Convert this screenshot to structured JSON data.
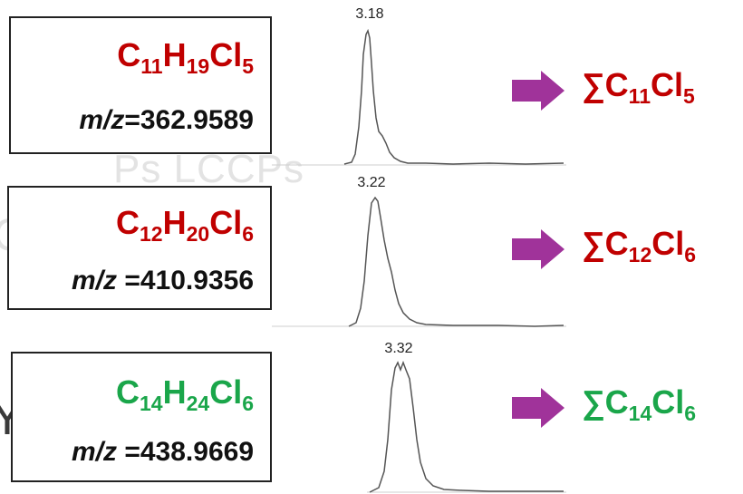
{
  "watermark": {
    "line1": "Ps  LCCPs",
    "line2": "C",
    "line3": "Y"
  },
  "colors": {
    "red": "#c00000",
    "green": "#1aa64a",
    "arrow": "#a0339a",
    "trace": "#555555"
  },
  "rows": [
    {
      "formula": {
        "c": "C",
        "c_n": "11",
        "h": "H",
        "h_n": "19",
        "cl": "Cl",
        "cl_n": "5"
      },
      "mz_label": "m/z",
      "mz_value": "=362.9589",
      "peak_label": "3.18",
      "sum": {
        "sym": "∑C",
        "c_n": "11",
        "cl": "Cl",
        "cl_n": "5"
      },
      "color": "red"
    },
    {
      "formula": {
        "c": "C",
        "c_n": "12",
        "h": "H",
        "h_n": "20",
        "cl": "Cl",
        "cl_n": "6"
      },
      "mz_label": "m/z",
      "mz_value": " =410.9356",
      "peak_label": "3.22",
      "sum": {
        "sym": "∑C",
        "c_n": "12",
        "cl": "Cl",
        "cl_n": "6"
      },
      "color": "red"
    },
    {
      "formula": {
        "c": "C",
        "c_n": "14",
        "h": "H",
        "h_n": "24",
        "cl": "Cl",
        "cl_n": "6"
      },
      "mz_label": "m/z",
      "mz_value": " =438.9669",
      "peak_label": "3.32",
      "sum": {
        "sym": "∑C",
        "c_n": "14",
        "cl": "Cl",
        "cl_n": "6"
      },
      "color": "green"
    }
  ]
}
